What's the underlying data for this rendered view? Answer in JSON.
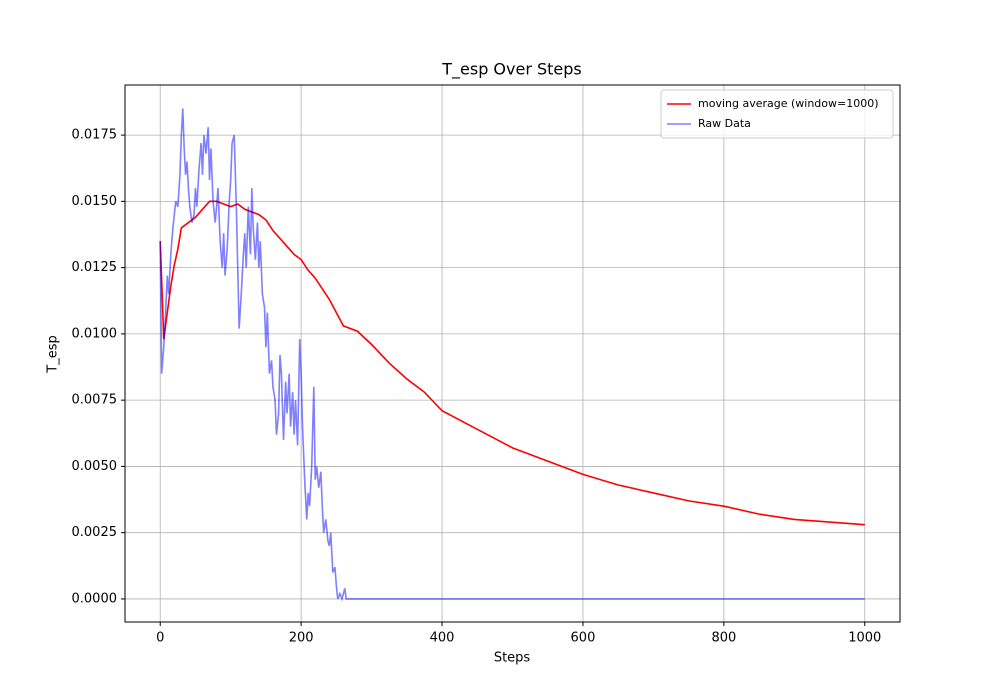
{
  "chart_data": {
    "type": "line",
    "title": "T_esp Over Steps",
    "x_label": "Steps",
    "y_label": "T_esp",
    "xlim": [
      -50,
      1050
    ],
    "ylim": [
      -0.00087,
      0.01939
    ],
    "xticks": [
      0,
      200,
      400,
      600,
      800,
      1000
    ],
    "yticks": [
      {
        "value": 0,
        "label": "0.0000"
      },
      0.0025,
      {
        "value": 0.005,
        "label": "0.0050"
      },
      0.0075,
      {
        "value": 0.01,
        "label": "0.0100"
      },
      0.0125,
      {
        "value": 0.015,
        "label": "0.0150"
      },
      0.0175
    ],
    "grid": true,
    "legend": "upper right",
    "series": [
      {
        "name": "moving average (window=1000)",
        "color": "#ff0000",
        "alpha": 1,
        "x": [
          0,
          5,
          10,
          15,
          20,
          25,
          30,
          40,
          50,
          60,
          70,
          80,
          90,
          100,
          110,
          120,
          130,
          140,
          150,
          160,
          170,
          180,
          190,
          200,
          210,
          220,
          230,
          240,
          250,
          260,
          280,
          300,
          325,
          350,
          375,
          400,
          450,
          500,
          550,
          600,
          650,
          700,
          750,
          800,
          850,
          900,
          950,
          1000
        ],
        "values": [
          0.0135,
          0.0098,
          0.0108,
          0.0118,
          0.0126,
          0.0132,
          0.014,
          0.0142,
          0.0144,
          0.0147,
          0.015,
          0.015,
          0.0149,
          0.0148,
          0.0149,
          0.0147,
          0.0146,
          0.0145,
          0.0143,
          0.0139,
          0.0136,
          0.0133,
          0.013,
          0.0128,
          0.0124,
          0.0121,
          0.0117,
          0.0113,
          0.0108,
          0.0103,
          0.0101,
          0.0096,
          0.0089,
          0.0083,
          0.0078,
          0.0071,
          0.0064,
          0.0057,
          0.0052,
          0.0047,
          0.0043,
          0.004,
          0.0037,
          0.0035,
          0.0032,
          0.003,
          0.0029,
          0.0028
        ]
      },
      {
        "name": "Raw Data",
        "color": "#0000ff",
        "alpha": 0.5,
        "x": [
          0,
          2,
          5,
          8,
          10,
          12,
          15,
          18,
          20,
          22,
          25,
          28,
          30,
          32,
          34,
          36,
          38,
          40,
          42,
          45,
          48,
          50,
          52,
          55,
          58,
          60,
          62,
          65,
          68,
          70,
          72,
          75,
          78,
          80,
          82,
          85,
          88,
          90,
          92,
          95,
          98,
          100,
          102,
          105,
          108,
          110,
          112,
          115,
          118,
          120,
          122,
          125,
          128,
          130,
          132,
          135,
          138,
          140,
          142,
          145,
          148,
          150,
          152,
          155,
          158,
          160,
          163,
          165,
          168,
          170,
          172,
          175,
          178,
          180,
          183,
          185,
          188,
          190,
          192,
          195,
          198,
          200,
          202,
          205,
          208,
          210,
          212,
          215,
          218,
          220,
          222,
          225,
          228,
          230,
          232,
          235,
          238,
          240,
          242,
          245,
          248,
          250,
          252,
          255,
          258,
          260,
          262,
          264,
          1000
        ],
        "values": [
          0.0135,
          0.0085,
          0.0095,
          0.011,
          0.0122,
          0.0115,
          0.013,
          0.014,
          0.0145,
          0.015,
          0.0148,
          0.016,
          0.0175,
          0.0185,
          0.017,
          0.016,
          0.0165,
          0.0155,
          0.0148,
          0.0142,
          0.0145,
          0.0155,
          0.0148,
          0.0162,
          0.0172,
          0.016,
          0.0175,
          0.0168,
          0.0178,
          0.0158,
          0.017,
          0.015,
          0.0142,
          0.0148,
          0.0155,
          0.0135,
          0.0125,
          0.0138,
          0.0122,
          0.0132,
          0.015,
          0.0158,
          0.0172,
          0.0175,
          0.0148,
          0.0125,
          0.0102,
          0.0115,
          0.013,
          0.0138,
          0.0125,
          0.0148,
          0.013,
          0.0155,
          0.014,
          0.0128,
          0.0142,
          0.0125,
          0.0135,
          0.0115,
          0.011,
          0.0095,
          0.0108,
          0.0085,
          0.009,
          0.008,
          0.0075,
          0.0062,
          0.007,
          0.0092,
          0.0085,
          0.006,
          0.0082,
          0.007,
          0.0085,
          0.0065,
          0.0078,
          0.0062,
          0.0075,
          0.0058,
          0.0098,
          0.0085,
          0.0065,
          0.0045,
          0.003,
          0.004,
          0.0035,
          0.005,
          0.008,
          0.0045,
          0.005,
          0.0042,
          0.0048,
          0.0035,
          0.0025,
          0.003,
          0.0022,
          0.002,
          0.0025,
          0.001,
          0.0012,
          0.0005,
          0,
          0.0002,
          0,
          0.0002,
          0.0004,
          0,
          0
        ]
      }
    ]
  }
}
